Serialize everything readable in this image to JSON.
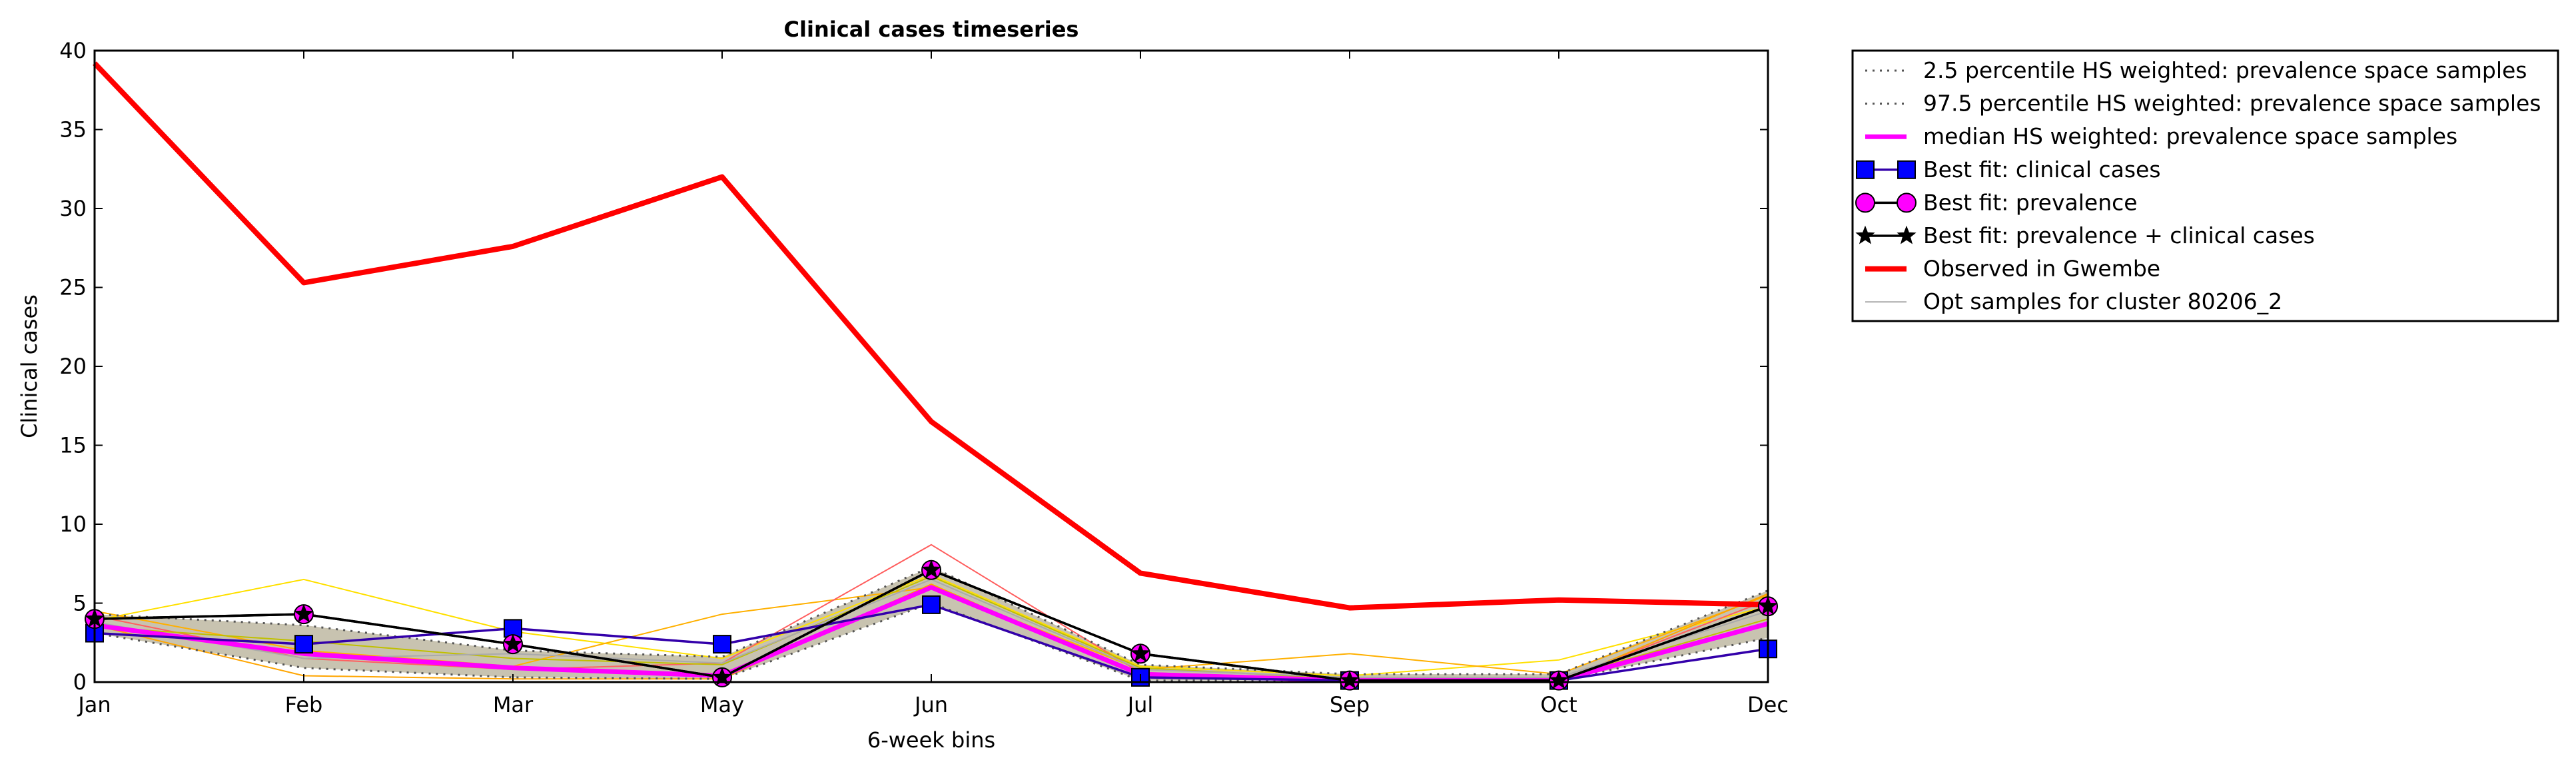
{
  "chart_data": {
    "type": "line",
    "title": "Clinical cases timeseries",
    "xlabel": "6-week bins",
    "ylabel": "Clinical cases",
    "categories": [
      "Jan",
      "Feb",
      "Mar",
      "May",
      "Jun",
      "Jul",
      "Sep",
      "Oct",
      "Dec"
    ],
    "ylim": [
      0,
      40
    ],
    "yticks": [
      "0",
      "5",
      "10",
      "15",
      "20",
      "25",
      "30",
      "35",
      "40"
    ],
    "grid": false,
    "legend_position": "outside-right",
    "band": {
      "lower": [
        3.1,
        0.9,
        0.3,
        0.2,
        5.0,
        0.1,
        0.1,
        0.1,
        2.8
      ],
      "upper": [
        4.3,
        3.6,
        2.0,
        1.6,
        7.3,
        1.1,
        0.5,
        0.5,
        5.8
      ],
      "color": "#c8c3b0"
    },
    "series": [
      {
        "name": "2.5 percentile HS weighted: prevalence space samples",
        "color": "#555555",
        "style": "dotted",
        "values": [
          3.1,
          0.9,
          0.3,
          0.2,
          5.0,
          0.1,
          0.1,
          0.1,
          2.8
        ]
      },
      {
        "name": "97.5 percentile HS weighted: prevalence space samples",
        "color": "#555555",
        "style": "dotted",
        "values": [
          4.3,
          3.6,
          2.0,
          1.6,
          7.3,
          1.1,
          0.5,
          0.5,
          5.8
        ]
      },
      {
        "name": "median HS weighted: prevalence space samples",
        "color": "#ff00ff",
        "style": "solid",
        "values": [
          3.6,
          1.8,
          0.9,
          0.4,
          6.0,
          0.5,
          0.1,
          0.1,
          3.7
        ]
      },
      {
        "name": "Best fit: clinical cases",
        "color": "#3300aa",
        "style": "solid",
        "marker": "square",
        "marker_color": "#0000ff",
        "values": [
          3.1,
          2.4,
          3.4,
          2.4,
          4.9,
          0.3,
          0.1,
          0.1,
          2.1
        ]
      },
      {
        "name": "Best fit: prevalence",
        "color": "#000000",
        "style": "solid",
        "marker": "circle",
        "marker_color": "#ff00ff",
        "values": [
          4.0,
          4.3,
          2.4,
          0.3,
          7.1,
          1.8,
          0.1,
          0.1,
          4.8
        ]
      },
      {
        "name": "Best fit: prevalence + clinical cases",
        "color": "#000000",
        "style": "solid",
        "marker": "star",
        "marker_color": "#000000",
        "values": [
          4.0,
          4.3,
          2.4,
          0.3,
          7.1,
          1.8,
          0.1,
          0.1,
          4.8
        ]
      },
      {
        "name": "Observed in Gwembe",
        "color": "#ff0000",
        "style": "thick",
        "values": [
          39.2,
          25.3,
          27.6,
          32.0,
          16.5,
          6.9,
          4.7,
          5.2,
          4.9
        ]
      },
      {
        "name": "Opt samples for cluster 80206_2",
        "color": "#aaaaaa",
        "style": "thin",
        "values": [
          3.8,
          1.5,
          1.8,
          1.2,
          6.5,
          0.8,
          0.3,
          0.3,
          4.5
        ]
      }
    ],
    "sample_lines": [
      {
        "color": "#ffe000",
        "values": [
          3.9,
          6.5,
          3.2,
          1.5,
          6.8,
          1.0,
          0.4,
          1.4,
          4.8
        ]
      },
      {
        "color": "#ffb000",
        "values": [
          4.5,
          2.0,
          1.0,
          4.3,
          6.0,
          0.8,
          1.8,
          0.5,
          5.5
        ]
      },
      {
        "color": "#ff6060",
        "values": [
          4.2,
          1.5,
          0.8,
          1.2,
          8.7,
          0.6,
          0.2,
          0.1,
          5.2
        ]
      },
      {
        "color": "#ffa500",
        "values": [
          3.6,
          0.4,
          0.2,
          0.2,
          6.2,
          0.4,
          0.1,
          0.0,
          5.6
        ]
      },
      {
        "color": "#c0c000",
        "values": [
          3.5,
          2.6,
          1.5,
          1.1,
          6.7,
          0.9,
          0.2,
          0.2,
          4.0
        ]
      }
    ]
  }
}
